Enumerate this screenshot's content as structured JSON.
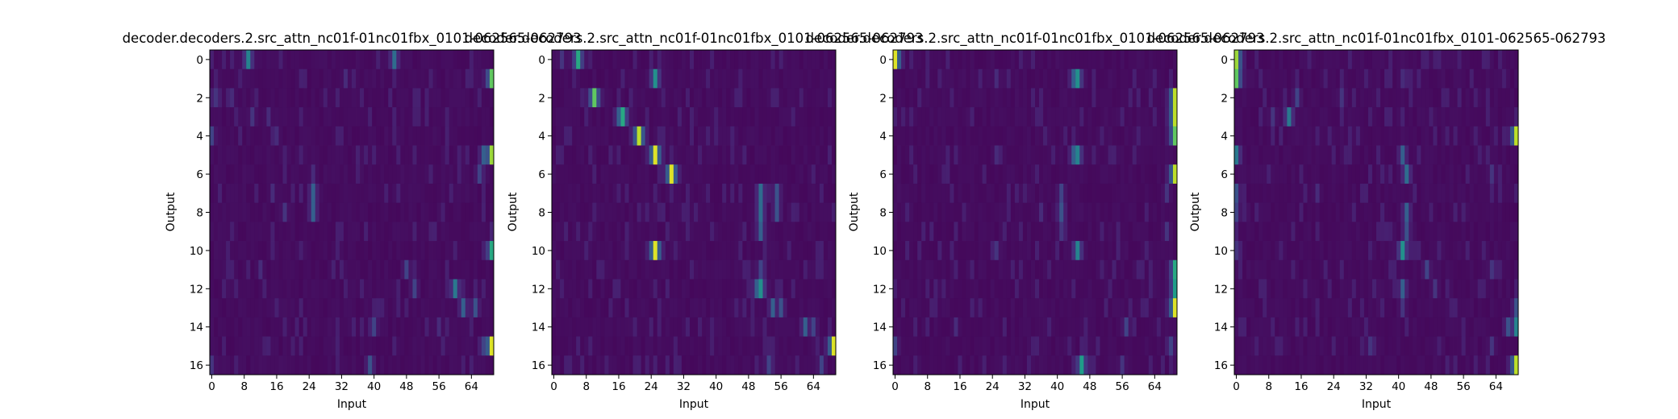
{
  "figure": {
    "background": "#ffffff"
  },
  "chart_data": [
    {
      "type": "heatmap",
      "title": "decoder.decoders.2.src_attn_nc01f-01nc01fbx_0101-062565-062793",
      "xlabel": "Input",
      "ylabel": "Output",
      "n_inputs": 70,
      "n_outputs": 17,
      "x_ticks": [
        0,
        8,
        16,
        24,
        32,
        40,
        48,
        56,
        64
      ],
      "y_ticks": [
        0,
        2,
        4,
        6,
        8,
        10,
        12,
        14,
        16
      ],
      "colormap": "viridis",
      "base_value": 0.02,
      "peaks": [
        {
          "output": 0,
          "input": 9,
          "value": 0.45
        },
        {
          "output": 0,
          "input": 45,
          "value": 0.35
        },
        {
          "output": 1,
          "input": 69,
          "value": 0.75
        },
        {
          "output": 1,
          "input": 33,
          "value": 0.12
        },
        {
          "output": 2,
          "input": 1,
          "value": 0.15
        },
        {
          "output": 2,
          "input": 5,
          "value": 0.12
        },
        {
          "output": 3,
          "input": 10,
          "value": 0.15
        },
        {
          "output": 3,
          "input": 14,
          "value": 0.12
        },
        {
          "output": 4,
          "input": 0,
          "value": 0.2
        },
        {
          "output": 4,
          "input": 16,
          "value": 0.12
        },
        {
          "output": 5,
          "input": 69,
          "value": 0.85
        },
        {
          "output": 5,
          "input": 67,
          "value": 0.3
        },
        {
          "output": 6,
          "input": 66,
          "value": 0.2
        },
        {
          "output": 6,
          "input": 25,
          "value": 0.12
        },
        {
          "output": 7,
          "input": 25,
          "value": 0.3
        },
        {
          "output": 7,
          "input": 15,
          "value": 0.12
        },
        {
          "output": 8,
          "input": 25,
          "value": 0.3
        },
        {
          "output": 8,
          "input": 18,
          "value": 0.15
        },
        {
          "output": 9,
          "input": 69,
          "value": 0.1
        },
        {
          "output": 10,
          "input": 69,
          "value": 0.6
        },
        {
          "output": 11,
          "input": 48,
          "value": 0.2
        },
        {
          "output": 11,
          "input": 12,
          "value": 0.12
        },
        {
          "output": 12,
          "input": 60,
          "value": 0.4
        },
        {
          "output": 12,
          "input": 50,
          "value": 0.2
        },
        {
          "output": 13,
          "input": 62,
          "value": 0.3
        },
        {
          "output": 13,
          "input": 65,
          "value": 0.25
        },
        {
          "output": 14,
          "input": 40,
          "value": 0.2
        },
        {
          "output": 14,
          "input": 56,
          "value": 0.12
        },
        {
          "output": 15,
          "input": 69,
          "value": 0.95
        },
        {
          "output": 15,
          "input": 67,
          "value": 0.2
        },
        {
          "output": 16,
          "input": 39,
          "value": 0.25
        },
        {
          "output": 16,
          "input": 0,
          "value": 0.15
        }
      ]
    },
    {
      "type": "heatmap",
      "title": "decoder.decoders.2.src_attn_nc01f-01nc01fbx_0101-062565-062793",
      "xlabel": "Input",
      "ylabel": "Output",
      "n_inputs": 70,
      "n_outputs": 17,
      "x_ticks": [
        0,
        8,
        16,
        24,
        32,
        40,
        48,
        56,
        64
      ],
      "y_ticks": [
        0,
        2,
        4,
        6,
        8,
        10,
        12,
        14,
        16
      ],
      "colormap": "viridis",
      "base_value": 0.02,
      "peaks": [
        {
          "output": 0,
          "input": 6,
          "value": 0.6
        },
        {
          "output": 0,
          "input": 2,
          "value": 0.15
        },
        {
          "output": 1,
          "input": 25,
          "value": 0.5
        },
        {
          "output": 2,
          "input": 10,
          "value": 0.75
        },
        {
          "output": 3,
          "input": 17,
          "value": 0.6
        },
        {
          "output": 3,
          "input": 16,
          "value": 0.3
        },
        {
          "output": 4,
          "input": 21,
          "value": 0.9
        },
        {
          "output": 5,
          "input": 25,
          "value": 0.95
        },
        {
          "output": 6,
          "input": 29,
          "value": 0.95
        },
        {
          "output": 7,
          "input": 51,
          "value": 0.35
        },
        {
          "output": 7,
          "input": 55,
          "value": 0.25
        },
        {
          "output": 8,
          "input": 51,
          "value": 0.35
        },
        {
          "output": 8,
          "input": 55,
          "value": 0.25
        },
        {
          "output": 9,
          "input": 51,
          "value": 0.3
        },
        {
          "output": 10,
          "input": 25,
          "value": 0.95
        },
        {
          "output": 11,
          "input": 51,
          "value": 0.2
        },
        {
          "output": 12,
          "input": 51,
          "value": 0.5
        },
        {
          "output": 12,
          "input": 50,
          "value": 0.3
        },
        {
          "output": 13,
          "input": 54,
          "value": 0.3
        },
        {
          "output": 13,
          "input": 56,
          "value": 0.25
        },
        {
          "output": 14,
          "input": 62,
          "value": 0.3
        },
        {
          "output": 14,
          "input": 64,
          "value": 0.2
        },
        {
          "output": 15,
          "input": 69,
          "value": 0.95
        },
        {
          "output": 16,
          "input": 53,
          "value": 0.2
        },
        {
          "output": 16,
          "input": 66,
          "value": 0.2
        }
      ]
    },
    {
      "type": "heatmap",
      "title": "decoder.decoders.2.src_attn_nc01f-01nc01fbx_0101-062565-062793",
      "xlabel": "Input",
      "ylabel": "Output",
      "n_inputs": 70,
      "n_outputs": 17,
      "x_ticks": [
        0,
        8,
        16,
        24,
        32,
        40,
        48,
        56,
        64
      ],
      "y_ticks": [
        0,
        2,
        4,
        6,
        8,
        10,
        12,
        14,
        16
      ],
      "colormap": "viridis",
      "base_value": 0.02,
      "peaks": [
        {
          "output": 0,
          "input": 0,
          "value": 0.95
        },
        {
          "output": 1,
          "input": 45,
          "value": 0.5
        },
        {
          "output": 1,
          "input": 44,
          "value": 0.3
        },
        {
          "output": 1,
          "input": 25,
          "value": 0.12
        },
        {
          "output": 2,
          "input": 69,
          "value": 0.9
        },
        {
          "output": 3,
          "input": 69,
          "value": 0.9
        },
        {
          "output": 4,
          "input": 69,
          "value": 0.75
        },
        {
          "output": 5,
          "input": 45,
          "value": 0.45
        },
        {
          "output": 5,
          "input": 44,
          "value": 0.3
        },
        {
          "output": 5,
          "input": 25,
          "value": 0.12
        },
        {
          "output": 6,
          "input": 69,
          "value": 0.9
        },
        {
          "output": 7,
          "input": 41,
          "value": 0.2
        },
        {
          "output": 7,
          "input": 67,
          "value": 0.15
        },
        {
          "output": 8,
          "input": 41,
          "value": 0.25
        },
        {
          "output": 8,
          "input": 36,
          "value": 0.12
        },
        {
          "output": 9,
          "input": 41,
          "value": 0.15
        },
        {
          "output": 9,
          "input": 67,
          "value": 0.15
        },
        {
          "output": 10,
          "input": 45,
          "value": 0.45
        },
        {
          "output": 10,
          "input": 25,
          "value": 0.15
        },
        {
          "output": 11,
          "input": 69,
          "value": 0.6
        },
        {
          "output": 12,
          "input": 69,
          "value": 0.55
        },
        {
          "output": 13,
          "input": 69,
          "value": 0.95
        },
        {
          "output": 14,
          "input": 57,
          "value": 0.2
        },
        {
          "output": 14,
          "input": 15,
          "value": 0.12
        },
        {
          "output": 15,
          "input": 0,
          "value": 0.2
        },
        {
          "output": 15,
          "input": 68,
          "value": 0.2
        },
        {
          "output": 16,
          "input": 46,
          "value": 0.55
        },
        {
          "output": 16,
          "input": 56,
          "value": 0.15
        }
      ]
    },
    {
      "type": "heatmap",
      "title": "decoder.decoders.2.src_attn_nc01f-01nc01fbx_0101-062565-062793",
      "xlabel": "Input",
      "ylabel": "Output",
      "n_inputs": 70,
      "n_outputs": 17,
      "x_ticks": [
        0,
        8,
        16,
        24,
        32,
        40,
        48,
        56,
        64
      ],
      "y_ticks": [
        0,
        2,
        4,
        6,
        8,
        10,
        12,
        14,
        16
      ],
      "colormap": "viridis",
      "base_value": 0.02,
      "peaks": [
        {
          "output": 0,
          "input": 0,
          "value": 0.85
        },
        {
          "output": 1,
          "input": 0,
          "value": 0.75
        },
        {
          "output": 1,
          "input": 41,
          "value": 0.12
        },
        {
          "output": 2,
          "input": 15,
          "value": 0.2
        },
        {
          "output": 2,
          "input": 26,
          "value": 0.15
        },
        {
          "output": 3,
          "input": 13,
          "value": 0.4
        },
        {
          "output": 3,
          "input": 9,
          "value": 0.15
        },
        {
          "output": 4,
          "input": 69,
          "value": 0.9
        },
        {
          "output": 5,
          "input": 0,
          "value": 0.4
        },
        {
          "output": 5,
          "input": 41,
          "value": 0.3
        },
        {
          "output": 6,
          "input": 42,
          "value": 0.35
        },
        {
          "output": 6,
          "input": 63,
          "value": 0.15
        },
        {
          "output": 7,
          "input": 0,
          "value": 0.25
        },
        {
          "output": 7,
          "input": 20,
          "value": 0.12
        },
        {
          "output": 8,
          "input": 42,
          "value": 0.3
        },
        {
          "output": 8,
          "input": 0,
          "value": 0.2
        },
        {
          "output": 9,
          "input": 42,
          "value": 0.25
        },
        {
          "output": 10,
          "input": 41,
          "value": 0.5
        },
        {
          "output": 10,
          "input": 0,
          "value": 0.15
        },
        {
          "output": 11,
          "input": 47,
          "value": 0.2
        },
        {
          "output": 11,
          "input": 63,
          "value": 0.15
        },
        {
          "output": 12,
          "input": 41,
          "value": 0.3
        },
        {
          "output": 12,
          "input": 49,
          "value": 0.15
        },
        {
          "output": 13,
          "input": 69,
          "value": 0.25
        },
        {
          "output": 13,
          "input": 41,
          "value": 0.15
        },
        {
          "output": 14,
          "input": 69,
          "value": 0.45
        },
        {
          "output": 14,
          "input": 67,
          "value": 0.25
        },
        {
          "output": 15,
          "input": 33,
          "value": 0.15
        },
        {
          "output": 15,
          "input": 63,
          "value": 0.15
        },
        {
          "output": 16,
          "input": 69,
          "value": 0.9
        }
      ]
    }
  ]
}
